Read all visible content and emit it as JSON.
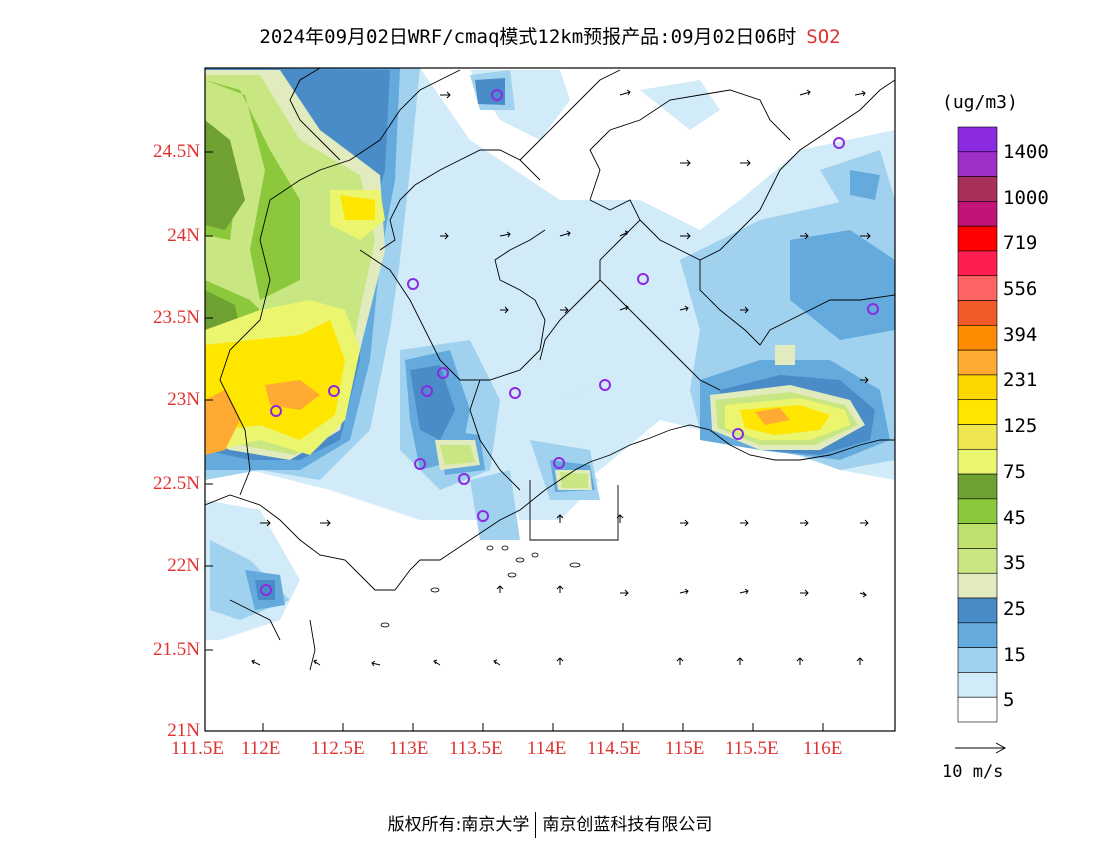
{
  "title": {
    "text": "2024年09月02日WRF/cmaq模式12km预报产品:09月02日06时",
    "species": "SO2",
    "species_color": "#e0312f"
  },
  "axes": {
    "lat_labels": [
      "24.5N",
      "24N",
      "23.5N",
      "23N",
      "22.5N",
      "22N",
      "21.5N",
      "21N"
    ],
    "lon_labels": [
      "111.5E",
      "112E",
      "112.5E",
      "113E",
      "113.5E",
      "114E",
      "114.5E",
      "115E",
      "115.5E",
      "116E"
    ],
    "label_color": "#e0312f"
  },
  "colorbar": {
    "unit": "(ug/m3)",
    "labels": [
      "1400",
      "1000",
      "719",
      "556",
      "394",
      "231",
      "125",
      "75",
      "45",
      "35",
      "25",
      "15",
      "5"
    ],
    "colors": [
      "#8a2be2",
      "#9c30c8",
      "#a8305a",
      "#c21478",
      "#ff0000",
      "#ff1e50",
      "#ff6464",
      "#f05a28",
      "#ff8c00",
      "#ffaa32",
      "#ffd700",
      "#ffe600",
      "#f0e650",
      "#ebf56e",
      "#6ea032",
      "#8cc83c",
      "#bee16e",
      "#c8e682",
      "#e1ebbe",
      "#4a8cc8",
      "#64aadc",
      "#a0d2f0",
      "#d2ebf8",
      "#ffffff"
    ]
  },
  "vector_legend": {
    "label": "10 m/s"
  },
  "footer": {
    "left": "版权所有:南京大学",
    "right": "南京创蓝科技有限公司"
  }
}
